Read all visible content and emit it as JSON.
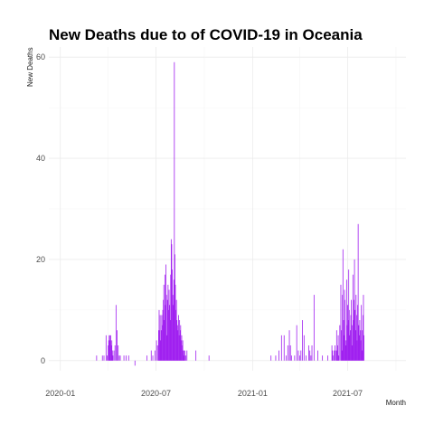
{
  "chart_data": {
    "type": "bar",
    "title": "New Deaths due to of COVID-19 in Oceania",
    "xlabel": "Month",
    "ylabel": "New Deaths",
    "bar_color": "#a020f0",
    "grid": true,
    "ylim": [
      -2,
      62
    ],
    "xlim": [
      "2019-12-10",
      "2021-10-20"
    ],
    "yticks": [
      0,
      20,
      40,
      60
    ],
    "xticks": [
      {
        "date": "2020-01-01",
        "label": "2020-01"
      },
      {
        "date": "2020-07-01",
        "label": "2020-07"
      },
      {
        "date": "2021-01-01",
        "label": "2021-01"
      },
      {
        "date": "2021-07-01",
        "label": "2021-07"
      }
    ],
    "points": [
      [
        "2020-03-10",
        1
      ],
      [
        "2020-03-21",
        1
      ],
      [
        "2020-03-24",
        1
      ],
      [
        "2020-03-28",
        5
      ],
      [
        "2020-03-30",
        1
      ],
      [
        "2020-04-01",
        3
      ],
      [
        "2020-04-02",
        4
      ],
      [
        "2020-04-03",
        5
      ],
      [
        "2020-04-04",
        5
      ],
      [
        "2020-04-05",
        4
      ],
      [
        "2020-04-06",
        5
      ],
      [
        "2020-04-07",
        3
      ],
      [
        "2020-04-08",
        4
      ],
      [
        "2020-04-09",
        2
      ],
      [
        "2020-04-10",
        1
      ],
      [
        "2020-04-12",
        2
      ],
      [
        "2020-04-14",
        3
      ],
      [
        "2020-04-16",
        11
      ],
      [
        "2020-04-18",
        6
      ],
      [
        "2020-04-20",
        3
      ],
      [
        "2020-04-22",
        1
      ],
      [
        "2020-04-24",
        1
      ],
      [
        "2020-05-01",
        1
      ],
      [
        "2020-05-05",
        1
      ],
      [
        "2020-05-10",
        1
      ],
      [
        "2020-05-22",
        -1
      ],
      [
        "2020-06-14",
        1
      ],
      [
        "2020-06-22",
        2
      ],
      [
        "2020-06-25",
        1
      ],
      [
        "2020-06-29",
        2
      ],
      [
        "2020-07-02",
        4
      ],
      [
        "2020-07-04",
        3
      ],
      [
        "2020-07-06",
        6
      ],
      [
        "2020-07-07",
        10
      ],
      [
        "2020-07-08",
        6
      ],
      [
        "2020-07-09",
        9
      ],
      [
        "2020-07-10",
        4
      ],
      [
        "2020-07-11",
        6
      ],
      [
        "2020-07-12",
        9
      ],
      [
        "2020-07-13",
        7
      ],
      [
        "2020-07-14",
        10
      ],
      [
        "2020-07-15",
        12
      ],
      [
        "2020-07-16",
        15
      ],
      [
        "2020-07-17",
        8
      ],
      [
        "2020-07-18",
        17
      ],
      [
        "2020-07-19",
        11
      ],
      [
        "2020-07-20",
        19
      ],
      [
        "2020-07-21",
        13
      ],
      [
        "2020-07-22",
        5
      ],
      [
        "2020-07-23",
        12
      ],
      [
        "2020-07-24",
        15
      ],
      [
        "2020-07-25",
        10
      ],
      [
        "2020-07-26",
        14
      ],
      [
        "2020-07-27",
        11
      ],
      [
        "2020-07-28",
        8
      ],
      [
        "2020-07-29",
        17
      ],
      [
        "2020-07-30",
        24
      ],
      [
        "2020-07-31",
        23
      ],
      [
        "2020-08-01",
        18
      ],
      [
        "2020-08-02",
        13
      ],
      [
        "2020-08-03",
        11
      ],
      [
        "2020-08-04",
        16
      ],
      [
        "2020-08-05",
        59
      ],
      [
        "2020-08-06",
        21
      ],
      [
        "2020-08-07",
        15
      ],
      [
        "2020-08-08",
        10
      ],
      [
        "2020-08-09",
        12
      ],
      [
        "2020-08-10",
        8
      ],
      [
        "2020-08-11",
        7
      ],
      [
        "2020-08-12",
        6
      ],
      [
        "2020-08-13",
        9
      ],
      [
        "2020-08-14",
        5
      ],
      [
        "2020-08-15",
        8
      ],
      [
        "2020-08-16",
        6
      ],
      [
        "2020-08-17",
        7
      ],
      [
        "2020-08-18",
        4
      ],
      [
        "2020-08-19",
        5
      ],
      [
        "2020-08-20",
        3
      ],
      [
        "2020-08-21",
        4
      ],
      [
        "2020-08-22",
        2
      ],
      [
        "2020-08-23",
        2
      ],
      [
        "2020-08-24",
        1
      ],
      [
        "2020-08-25",
        2
      ],
      [
        "2020-08-27",
        1
      ],
      [
        "2020-08-29",
        2
      ],
      [
        "2020-09-15",
        2
      ],
      [
        "2020-10-10",
        1
      ],
      [
        "2021-02-05",
        1
      ],
      [
        "2021-02-14",
        1
      ],
      [
        "2021-02-20",
        2
      ],
      [
        "2021-02-25",
        5
      ],
      [
        "2021-03-02",
        5
      ],
      [
        "2021-03-06",
        1
      ],
      [
        "2021-03-09",
        3
      ],
      [
        "2021-03-12",
        6
      ],
      [
        "2021-03-14",
        3
      ],
      [
        "2021-03-16",
        1
      ],
      [
        "2021-03-22",
        1
      ],
      [
        "2021-03-26",
        7
      ],
      [
        "2021-03-29",
        2
      ],
      [
        "2021-04-01",
        1
      ],
      [
        "2021-04-03",
        2
      ],
      [
        "2021-04-06",
        8
      ],
      [
        "2021-04-09",
        5
      ],
      [
        "2021-04-13",
        1
      ],
      [
        "2021-04-18",
        3
      ],
      [
        "2021-04-20",
        2
      ],
      [
        "2021-04-22",
        1
      ],
      [
        "2021-04-24",
        3
      ],
      [
        "2021-04-28",
        13
      ],
      [
        "2021-05-05",
        2
      ],
      [
        "2021-05-14",
        1
      ],
      [
        "2021-05-24",
        1
      ],
      [
        "2021-06-01",
        3
      ],
      [
        "2021-06-02",
        2
      ],
      [
        "2021-06-04",
        1
      ],
      [
        "2021-06-05",
        2
      ],
      [
        "2021-06-07",
        3
      ],
      [
        "2021-06-09",
        2
      ],
      [
        "2021-06-10",
        6
      ],
      [
        "2021-06-11",
        2
      ],
      [
        "2021-06-12",
        3
      ],
      [
        "2021-06-13",
        5
      ],
      [
        "2021-06-14",
        1
      ],
      [
        "2021-06-16",
        7
      ],
      [
        "2021-06-18",
        15
      ],
      [
        "2021-06-19",
        6
      ],
      [
        "2021-06-20",
        2
      ],
      [
        "2021-06-21",
        13
      ],
      [
        "2021-06-22",
        22
      ],
      [
        "2021-06-23",
        8
      ],
      [
        "2021-06-24",
        5
      ],
      [
        "2021-06-25",
        14
      ],
      [
        "2021-06-26",
        12
      ],
      [
        "2021-06-27",
        4
      ],
      [
        "2021-06-28",
        3
      ],
      [
        "2021-06-29",
        16
      ],
      [
        "2021-06-30",
        7
      ],
      [
        "2021-07-01",
        11
      ],
      [
        "2021-07-02",
        8
      ],
      [
        "2021-07-03",
        18
      ],
      [
        "2021-07-04",
        10
      ],
      [
        "2021-07-05",
        5
      ],
      [
        "2021-07-06",
        6
      ],
      [
        "2021-07-07",
        9
      ],
      [
        "2021-07-08",
        12
      ],
      [
        "2021-07-09",
        3
      ],
      [
        "2021-07-10",
        7
      ],
      [
        "2021-07-11",
        17
      ],
      [
        "2021-07-12",
        8
      ],
      [
        "2021-07-13",
        12
      ],
      [
        "2021-07-14",
        20
      ],
      [
        "2021-07-15",
        10
      ],
      [
        "2021-07-16",
        6
      ],
      [
        "2021-07-17",
        13
      ],
      [
        "2021-07-18",
        9
      ],
      [
        "2021-07-19",
        4
      ],
      [
        "2021-07-20",
        11
      ],
      [
        "2021-07-21",
        27
      ],
      [
        "2021-07-22",
        7
      ],
      [
        "2021-07-23",
        5
      ],
      [
        "2021-07-24",
        8
      ],
      [
        "2021-07-25",
        6
      ],
      [
        "2021-07-26",
        4
      ],
      [
        "2021-07-27",
        11
      ],
      [
        "2021-07-28",
        6
      ],
      [
        "2021-07-29",
        2
      ],
      [
        "2021-07-30",
        9
      ],
      [
        "2021-07-31",
        13
      ],
      [
        "2021-08-01",
        5
      ]
    ]
  }
}
